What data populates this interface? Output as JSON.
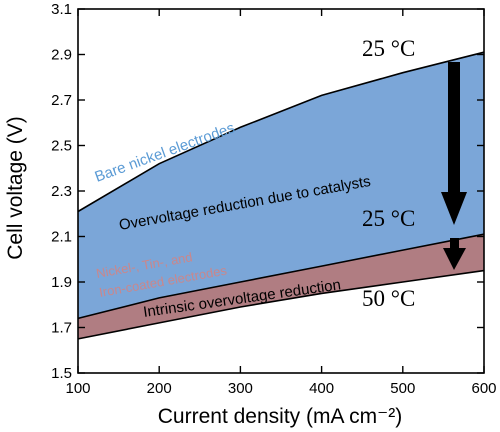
{
  "chart_data": {
    "type": "area",
    "xlabel": "Current density (mA cm⁻²)",
    "ylabel": "Cell voltage (V)",
    "xlim": [
      100,
      600
    ],
    "ylim": [
      1.5,
      3.1
    ],
    "x_ticks": [
      "100",
      "200",
      "300",
      "400",
      "500",
      "600"
    ],
    "y_ticks": [
      "1.5",
      "1.7",
      "1.9",
      "2.1",
      "2.3",
      "2.5",
      "2.7",
      "2.9",
      "3.1"
    ],
    "grid": false,
    "series": [
      {
        "key": "bare",
        "x": [
          100,
          200,
          300,
          400,
          500,
          600
        ],
        "y": [
          2.21,
          2.42,
          2.58,
          2.72,
          2.82,
          2.91
        ],
        "fill": "#7ba6d8"
      },
      {
        "key": "coated",
        "x": [
          100,
          200,
          300,
          400,
          500,
          600
        ],
        "y": [
          1.74,
          1.83,
          1.9,
          1.97,
          2.04,
          2.11
        ],
        "fill": "#b07d82"
      },
      {
        "key": "coated_50",
        "x": [
          100,
          200,
          300,
          400,
          500,
          600
        ],
        "y": [
          1.65,
          1.72,
          1.79,
          1.85,
          1.9,
          1.95
        ],
        "fill": "#ffffff"
      }
    ],
    "annotations": {
      "bare_label": "Bare nickel electrodes",
      "catalyst_label": "Overvoltage reduction due to catalysts",
      "coated_label_line1": "Nickel-, Tin-, and",
      "coated_label_line2": "Iron-coated electrodes",
      "intrinsic_label": "Intrinsic overvoltage reduction",
      "temp_top": "25 °C",
      "temp_mid": "25 °C",
      "temp_bottom": "50 °C"
    },
    "colors": {
      "bare_label": "#5b9bd5",
      "coated_label": "#c9878c",
      "arrow": "#000000"
    }
  }
}
